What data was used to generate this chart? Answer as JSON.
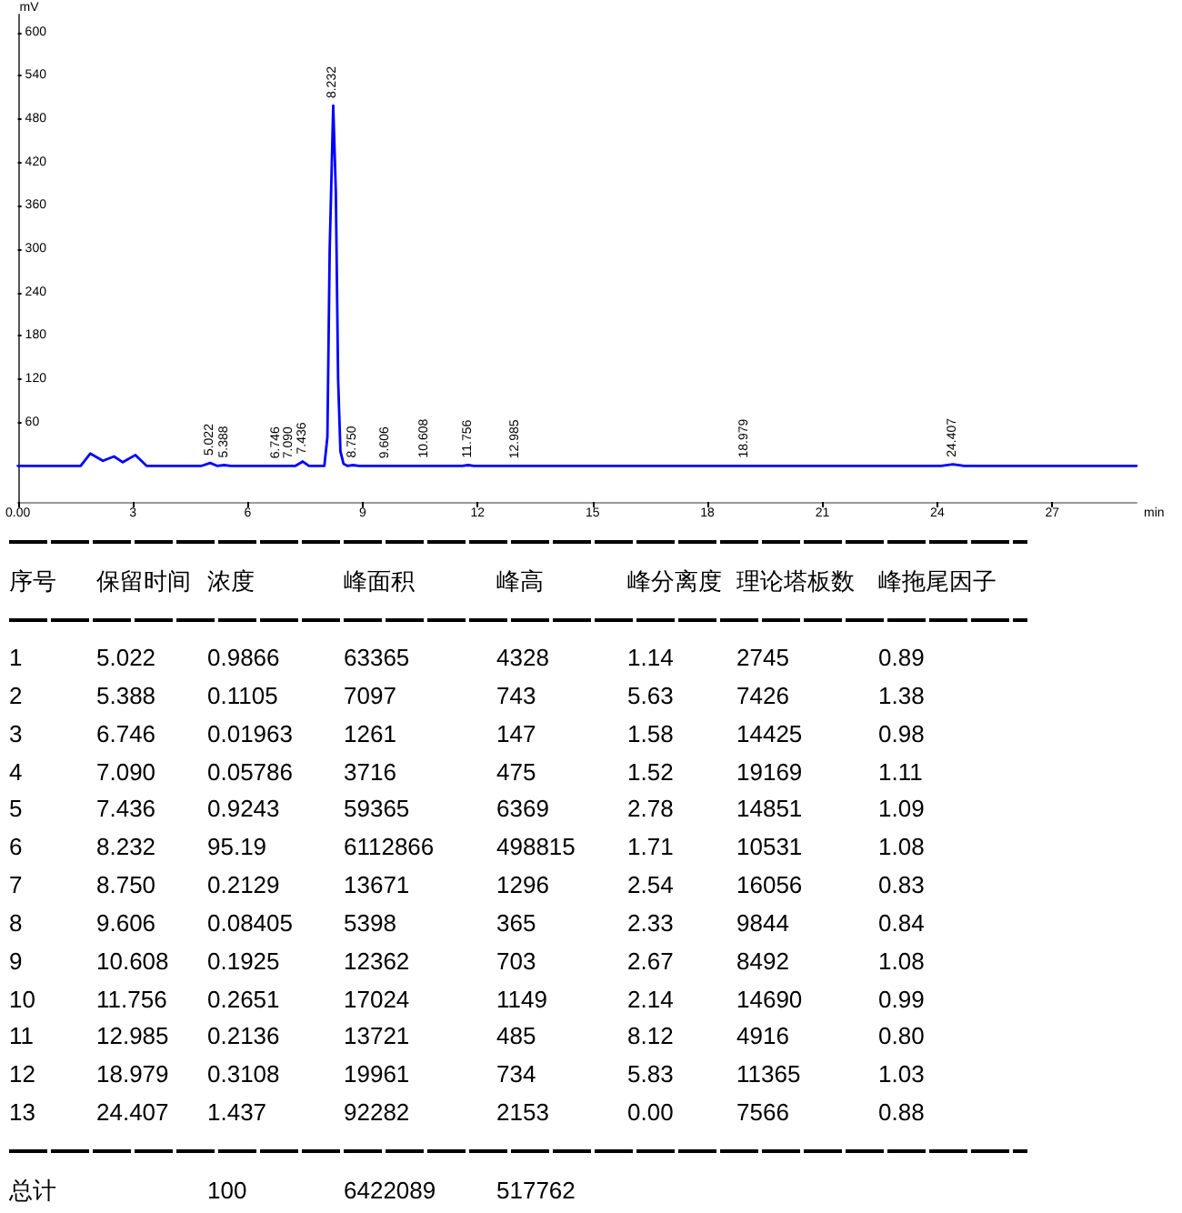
{
  "chart_data": [
    {
      "type": "line",
      "xlabel": "min",
      "ylabel": "mV",
      "color": "#0000ff",
      "x": [
        0,
        1.5,
        1.64,
        1.89,
        2.22,
        2.51,
        2.74,
        3.07,
        3.36,
        4.8,
        5.022,
        5.2,
        5.388,
        5.55,
        7.25,
        7.436,
        7.6,
        8.0,
        8.08,
        8.14,
        8.232,
        8.3,
        8.36,
        8.42,
        8.5,
        8.6,
        8.75,
        8.9,
        11.6,
        11.756,
        11.9,
        24.1,
        24.407,
        24.7,
        29.2
      ],
      "values": [
        0,
        0,
        0,
        17,
        7,
        13,
        5,
        15,
        0,
        0,
        4,
        0,
        1,
        0,
        0,
        6,
        0,
        0,
        40,
        300,
        499,
        380,
        120,
        20,
        3,
        0,
        1,
        0,
        0,
        1,
        0,
        0,
        2,
        0,
        0
      ],
      "xlim": [
        0,
        29.2
      ],
      "ylim": [
        -50,
        625
      ],
      "xticks": [
        {
          "value": 0,
          "label": "0.00"
        },
        3,
        6,
        9,
        12,
        15,
        18,
        21,
        24,
        27
      ],
      "yticks": [
        60,
        120,
        180,
        240,
        300,
        360,
        420,
        480,
        540,
        600
      ],
      "annotations": [
        {
          "text": "5.022",
          "x": 5.022,
          "y": 4
        },
        {
          "text": "5.388",
          "x": 5.388,
          "y": 1
        },
        {
          "text": "6.746",
          "x": 6.746,
          "y": 0
        },
        {
          "text": "7.090",
          "x": 7.09,
          "y": 0
        },
        {
          "text": "7.436",
          "x": 7.436,
          "y": 6
        },
        {
          "text": "8.232",
          "x": 8.232,
          "y": 499
        },
        {
          "text": "8.750",
          "x": 8.75,
          "y": 1
        },
        {
          "text": "9.606",
          "x": 9.606,
          "y": 0
        },
        {
          "text": "10.608",
          "x": 10.608,
          "y": 1
        },
        {
          "text": "11.756",
          "x": 11.756,
          "y": 1
        },
        {
          "text": "12.985",
          "x": 12.985,
          "y": 0
        },
        {
          "text": "18.979",
          "x": 18.979,
          "y": 1
        },
        {
          "text": "24.407",
          "x": 24.407,
          "y": 2
        }
      ]
    },
    {
      "type": "heatmap",
      "ylabel": "序号",
      "categories": [
        "保留时间",
        "浓度",
        "峰面积",
        "峰高",
        "峰分离度",
        "理论塔板数",
        "峰拖尾因子"
      ],
      "y_categories": [
        "1",
        "2",
        "3",
        "4",
        "5",
        "6",
        "7",
        "8",
        "9",
        "10",
        "11",
        "12",
        "13"
      ],
      "cells": [
        [
          5.022,
          0.9866,
          63365,
          4328,
          1.14,
          2745,
          0.89
        ],
        [
          5.388,
          0.1105,
          7097,
          743,
          5.63,
          7426,
          1.38
        ],
        [
          6.746,
          0.01963,
          1261,
          147,
          1.58,
          14425,
          0.98
        ],
        [
          7.09,
          0.05786,
          3716,
          475,
          1.52,
          19169,
          1.11
        ],
        [
          7.436,
          0.9243,
          59365,
          6369,
          2.78,
          14851,
          1.09
        ],
        [
          8.232,
          95.19,
          6112866,
          498815,
          1.71,
          10531,
          1.08
        ],
        [
          8.75,
          0.2129,
          13671,
          1296,
          2.54,
          16056,
          0.83
        ],
        [
          9.606,
          0.08405,
          5398,
          365,
          2.33,
          9844,
          0.84
        ],
        [
          10.608,
          0.1925,
          12362,
          703,
          2.67,
          8492,
          1.08
        ],
        [
          11.756,
          0.2651,
          17024,
          1149,
          2.14,
          14690,
          0.99
        ],
        [
          12.985,
          0.2136,
          13721,
          485,
          8.12,
          4916,
          0.8
        ],
        [
          18.979,
          0.3108,
          19961,
          734,
          5.83,
          11365,
          1.03
        ],
        [
          24.407,
          1.437,
          92282,
          2153,
          0,
          7566,
          0.88
        ]
      ],
      "cell_labels": [
        [
          "5.022",
          "0.9866",
          "63365",
          "4328",
          "1.14",
          "2745",
          "0.89"
        ],
        [
          "5.388",
          "0.1105",
          "7097",
          "743",
          "5.63",
          "7426",
          "1.38"
        ],
        [
          "6.746",
          "0.01963",
          "1261",
          "147",
          "1.58",
          "14425",
          "0.98"
        ],
        [
          "7.090",
          "0.05786",
          "3716",
          "475",
          "1.52",
          "19169",
          "1.11"
        ],
        [
          "7.436",
          "0.9243",
          "59365",
          "6369",
          "2.78",
          "14851",
          "1.09"
        ],
        [
          "8.232",
          "95.19",
          "6112866",
          "498815",
          "1.71",
          "10531",
          "1.08"
        ],
        [
          "8.750",
          "0.2129",
          "13671",
          "1296",
          "2.54",
          "16056",
          "0.83"
        ],
        [
          "9.606",
          "0.08405",
          "5398",
          "365",
          "2.33",
          "9844",
          "0.84"
        ],
        [
          "10.608",
          "0.1925",
          "12362",
          "703",
          "2.67",
          "8492",
          "1.08"
        ],
        [
          "11.756",
          "0.2651",
          "17024",
          "1149",
          "2.14",
          "14690",
          "0.99"
        ],
        [
          "12.985",
          "0.2136",
          "13721",
          "485",
          "8.12",
          "4916",
          "0.80"
        ],
        [
          "18.979",
          "0.3108",
          "19961",
          "734",
          "5.83",
          "11365",
          "1.03"
        ],
        [
          "24.407",
          "1.437",
          "92282",
          "2153",
          "0.00",
          "7566",
          "0.88"
        ]
      ]
    },
    {
      "type": "heatmap",
      "tick_labels": "y",
      "data_labels": true,
      "categories": [
        null,
        null,
        null,
        null,
        null,
        null,
        null
      ],
      "y_categories": [
        "总计"
      ],
      "cells": [
        [
          null,
          100,
          6422089,
          517762,
          null,
          null,
          null
        ]
      ]
    }
  ]
}
